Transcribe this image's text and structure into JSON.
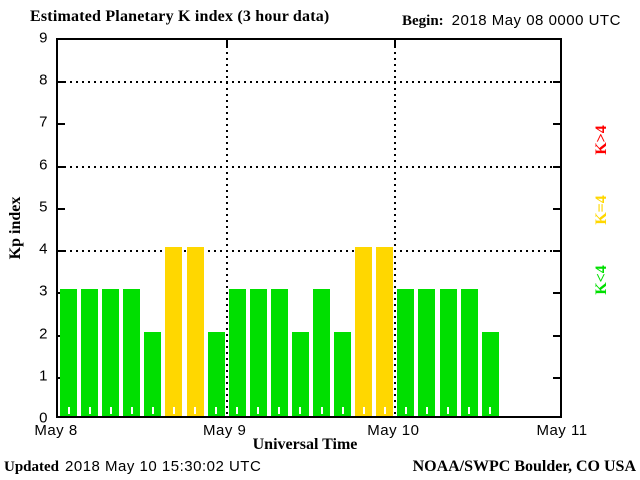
{
  "title": "Estimated Planetary K index (3 hour data)",
  "begin": {
    "label": "Begin:",
    "value": "2018 May 08 0000 UTC"
  },
  "y_axis": {
    "label": "Kp index",
    "ticks": [
      0,
      1,
      2,
      3,
      4,
      5,
      6,
      7,
      8,
      9
    ]
  },
  "x_axis": {
    "label": "Universal Time",
    "ticks": [
      "May 8",
      "May 9",
      "May 10",
      "May 11"
    ]
  },
  "legend": [
    {
      "name": "k-gt-4",
      "label": "K>4",
      "color": "#ff0000"
    },
    {
      "name": "k-eq-4",
      "label": "K=4",
      "color": "#ffd700"
    },
    {
      "name": "k-lt-4",
      "label": "K<4",
      "color": "#00df00"
    }
  ],
  "footer": {
    "updated_label": "Updated",
    "updated_value": "2018 May 10 15:30:02 UTC",
    "credit": "NOAA/SWPC Boulder, CO USA"
  },
  "chart_data": {
    "type": "bar",
    "title": "Estimated Planetary K index (3 hour data)",
    "xlabel": "Universal Time",
    "ylabel": "Kp index",
    "ylim": [
      0,
      9
    ],
    "interval_hours": 3,
    "begin": "2018 May 08 0000 UTC",
    "day_labels": [
      "May 8",
      "May 9",
      "May 10",
      "May 11"
    ],
    "slots_per_day": 8,
    "days_shown": 3,
    "kp_values": [
      3,
      3,
      3,
      3,
      2,
      4,
      4,
      2,
      3,
      3,
      3,
      2,
      3,
      2,
      4,
      4,
      3,
      3,
      3,
      3,
      2
    ],
    "series_by_day": [
      {
        "day": "May 8",
        "values": [
          3,
          3,
          3,
          3,
          2,
          4,
          4,
          2
        ]
      },
      {
        "day": "May 9",
        "values": [
          3,
          3,
          3,
          2,
          3,
          2,
          4,
          4
        ]
      },
      {
        "day": "May 10",
        "values": [
          3,
          3,
          3,
          3,
          2
        ]
      }
    ],
    "color_rules": [
      {
        "condition": "K<4",
        "color": "#00df00"
      },
      {
        "condition": "K=4",
        "color": "#ffd700"
      },
      {
        "condition": "K>4",
        "color": "#ff0000"
      }
    ],
    "grid": {
      "horizontal_dotted_at": [
        4,
        6,
        8
      ],
      "vertical_dotted_at_days": [
        "May 9",
        "May 10"
      ],
      "y_tick_marks": [
        1,
        2,
        3,
        4,
        5,
        6,
        7,
        8
      ]
    },
    "legend_position": "right"
  }
}
